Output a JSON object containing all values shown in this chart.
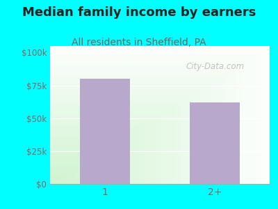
{
  "title": "Median family income by earners",
  "subtitle": "All residents in Sheffield, PA",
  "categories": [
    "1",
    "2+"
  ],
  "values": [
    80000,
    62000
  ],
  "bar_color": "#b8a8cc",
  "background_outer": "#00FFFF",
  "title_color": "#222222",
  "subtitle_color": "#7a6060",
  "tick_label_color": "#886666",
  "ytick_labels": [
    "$0",
    "$25k",
    "$50k",
    "$75k",
    "$100k"
  ],
  "ytick_values": [
    0,
    25000,
    50000,
    75000,
    100000
  ],
  "ylim": [
    0,
    105000
  ],
  "watermark": "City-Data.com",
  "title_fontsize": 13,
  "subtitle_fontsize": 10,
  "grid_color": "#dddddd"
}
